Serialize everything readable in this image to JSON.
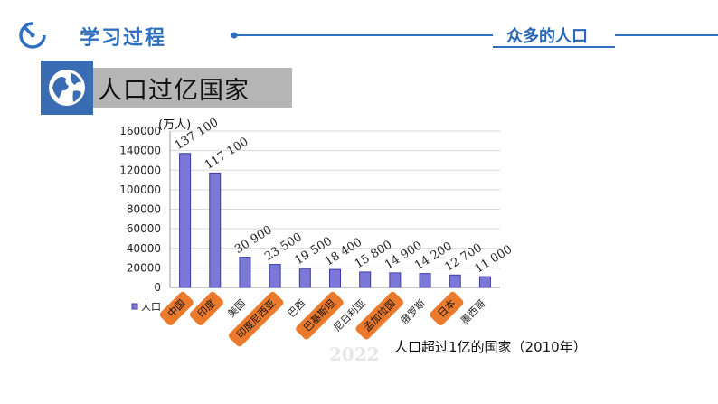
{
  "header": {
    "title": "学习过程",
    "right_title": "众多的人口",
    "accent_color": "#2f6fbf",
    "icon": "stopwatch-icon"
  },
  "section": {
    "title": "人口过亿国家",
    "icon": "globe-icon"
  },
  "caption": "人口超过1亿的国家（2010年）",
  "watermark": "2022",
  "chart_data": {
    "type": "bar",
    "unit_label": "(万人)",
    "categories": [
      "中国",
      "印度",
      "美国",
      "印度尼西亚",
      "巴西",
      "巴基斯坦",
      "尼日利亚",
      "孟加拉国",
      "俄罗斯",
      "日本",
      "墨西哥"
    ],
    "data_labels": [
      "137 100",
      "117 100",
      "30 900",
      "23 500",
      "19 500",
      "18 400",
      "15 800",
      "14 900",
      "14 200",
      "12 700",
      "11 000"
    ],
    "series": [
      {
        "name": "人口",
        "values": [
          137100,
          117100,
          30900,
          23500,
          19500,
          18400,
          15800,
          14900,
          14200,
          12700,
          11000
        ]
      }
    ],
    "highlighted": [
      "中国",
      "印度",
      "印度尼西亚",
      "巴基斯坦",
      "孟加拉国",
      "日本"
    ],
    "y_ticks": [
      "0",
      "20000",
      "40000",
      "60000",
      "80000",
      "100000",
      "120000",
      "140000",
      "160000"
    ],
    "ylim": [
      0,
      160000
    ],
    "grid": true,
    "legend": "bottom-left",
    "bar_color": "#7b78d8",
    "highlight_color": "#ec7a2d"
  }
}
